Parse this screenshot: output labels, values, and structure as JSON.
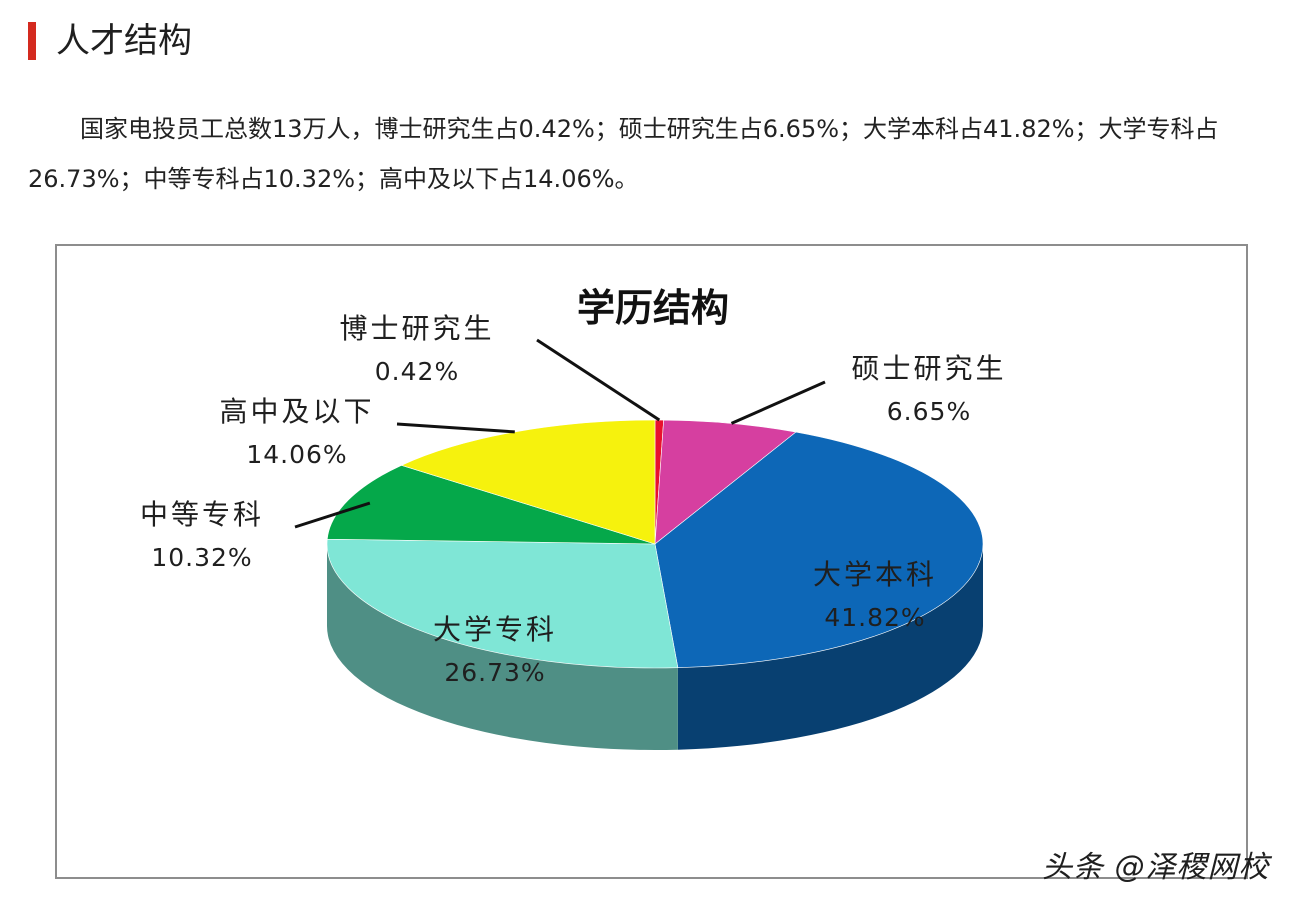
{
  "section": {
    "title": "人才结构"
  },
  "intro": {
    "text": "国家电投员工总数13万人，博士研究生占0.42%；硕士研究生占6.65%；大学本科占41.82%；大学专科占26.73%；中等专科占10.32%；高中及以下占14.06%。"
  },
  "watermark": "头条 @泽稷网校",
  "chart_data": {
    "type": "pie",
    "title": "学历结构",
    "three_d": true,
    "legend": "none",
    "series": [
      {
        "name": "博士研究生",
        "value": 0.42,
        "label": "0.42%",
        "color": "#e8112d"
      },
      {
        "name": "硕士研究生",
        "value": 6.65,
        "label": "6.65%",
        "color": "#d63fa0"
      },
      {
        "name": "大学本科",
        "value": 41.82,
        "label": "41.82%",
        "color": "#0d67b7"
      },
      {
        "name": "大学专科",
        "value": 26.73,
        "label": "26.73%",
        "color": "#7fe6d6"
      },
      {
        "name": "中等专科",
        "value": 10.32,
        "label": "10.32%",
        "color": "#05a84a"
      },
      {
        "name": "高中及以下",
        "value": 14.06,
        "label": "14.06%",
        "color": "#f6f20d"
      }
    ]
  }
}
